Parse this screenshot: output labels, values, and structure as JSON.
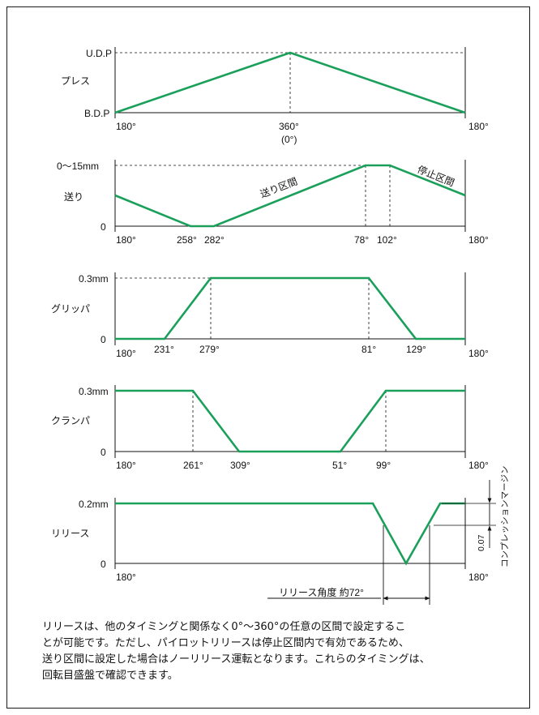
{
  "colors": {
    "wave": "#1aa05a",
    "line": "#111111"
  },
  "press": {
    "label": "プレス",
    "top_label": "U.D.P",
    "bottom_label": "B.D.P",
    "ticks": [
      "180°",
      "360°",
      "180°"
    ],
    "sub_tick": "(0°)"
  },
  "feed": {
    "label": "送り",
    "top_label": "0〜15mm",
    "bottom_label": "0",
    "ticks": [
      "180°",
      "258°",
      "282°",
      "78°",
      "102°",
      "180°"
    ],
    "zone_feed": "送り区間",
    "zone_stop": "停止区間"
  },
  "gripper": {
    "label": "グリッパ",
    "top_label": "0.3mm",
    "bottom_label": "0",
    "ticks": [
      "180°",
      "231°",
      "279°",
      "81°",
      "129°",
      "180°"
    ]
  },
  "clamper": {
    "label": "クランパ",
    "top_label": "0.3mm",
    "bottom_label": "0",
    "ticks": [
      "180°",
      "261°",
      "309°",
      "51°",
      "99°",
      "180°"
    ]
  },
  "release": {
    "label": "リリース",
    "top_label": "0.2mm",
    "bottom_label": "0",
    "ticks": [
      "180°",
      "180°"
    ],
    "angle_label": "リリース角度 約72°",
    "margin_value": "0.07",
    "margin_label": "コンプレッションマージン"
  },
  "note": {
    "line1": "リリースは、他のタイミングと関係なく0°〜360°の任意の区間で設定するこ",
    "line2": "とが可能です。ただし、パイロットリリースは停止区間内で有効であるため、",
    "line3": "送り区間に設定した場合はノーリリース運転となります。これらのタイミングは、",
    "line4": "回転目盛盤で確認できます。"
  }
}
